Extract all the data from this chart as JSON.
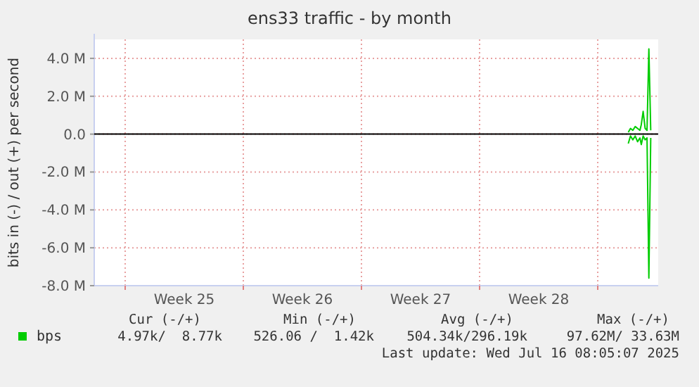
{
  "chart_data": {
    "type": "line",
    "title": "ens33 traffic - by month",
    "ylabel": "bits in (-) / out (+) per second",
    "x": [
      "2025-07-15T19:26",
      "2025-07-15T22:34",
      "2025-07-16T01:55",
      "2025-07-16T05:17",
      "2025-07-16T08:38",
      "2025-07-16T12:00",
      "2025-07-16T13:55",
      "2025-07-16T16:34",
      "2025-07-16T19:26",
      "2025-07-16T22:05",
      "2025-07-17T00:43",
      "2025-07-17T03:22"
    ],
    "series": [
      {
        "name": "bps",
        "color": "#00cc00",
        "values": [
          100000,
          300000,
          200000,
          400000,
          300000,
          200000,
          500000,
          1200000,
          300000,
          200000,
          4500000,
          200000
        ]
      },
      {
        "color": "#00cc00",
        "values": [
          -500000,
          -100000,
          -300000,
          -100000,
          -400000,
          -200000,
          -550000,
          -100000,
          -300000,
          -200000,
          -7600000,
          -200000
        ]
      }
    ],
    "xlim": [
      "2025-06-14T04:00",
      "2025-07-17T14:00"
    ],
    "xticks": [
      {
        "value": "2025-06-16T00:00",
        "label": null
      },
      {
        "value": "2025-06-19T12:00",
        "label": "Week 25"
      },
      {
        "value": "2025-06-23T00:00",
        "label": null
      },
      {
        "value": "2025-06-26T12:00",
        "label": "Week 26"
      },
      {
        "value": "2025-06-30T00:00",
        "label": null
      },
      {
        "value": "2025-07-03T12:00",
        "label": "Week 27"
      },
      {
        "value": "2025-07-07T00:00",
        "label": null
      },
      {
        "value": "2025-07-10T12:00",
        "label": "Week 28"
      },
      {
        "value": "2025-07-14T00:00",
        "label": null
      }
    ],
    "ylim": [
      -8000000,
      5000000
    ],
    "yticks": [
      {
        "value": -8000000,
        "label": "-8.0 M"
      },
      {
        "value": -6000000,
        "label": "-6.0 M"
      },
      {
        "value": -4000000,
        "label": "-4.0 M"
      },
      {
        "value": -2000000,
        "label": "-2.0 M"
      },
      {
        "value": 0,
        "label": "0.0"
      },
      {
        "value": 2000000,
        "label": "2.0 M"
      },
      {
        "value": 4000000,
        "label": "4.0 M"
      }
    ],
    "grid": true,
    "legend": "bottom left",
    "marker": "none",
    "line_style": "solid",
    "ref_lines": [
      {
        "axis": "y",
        "value": 0,
        "color": "#000000"
      }
    ],
    "annotations": [
      "Cur (-/+)",
      "Min (-/+)",
      "Avg (-/+)",
      "Max (-/+)",
      "4.97k/  8.77k",
      "526.06 /  1.42k",
      "504.34k/296.19k",
      "97.62M/ 33.63M",
      "Last update: Wed Jul 16 08:05:07 2025"
    ]
  }
}
